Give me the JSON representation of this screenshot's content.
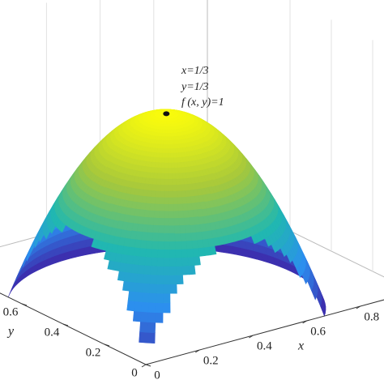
{
  "chart_data": {
    "type": "surface3d",
    "annotations": [
      "x=1/3",
      "y=1/3",
      "f (x, y)=1"
    ],
    "xlabel": "x",
    "ylabel": "y",
    "peak": {
      "x": 0.333,
      "y": 0.333,
      "z": 1
    },
    "xlim": [
      0,
      1
    ],
    "ylim": [
      0,
      1
    ],
    "zlim": [
      0,
      1
    ],
    "xticks": [
      0,
      0.2,
      0.4,
      0.6,
      0.8
    ],
    "yticks": [
      0,
      0.2,
      0.4,
      0.6
    ],
    "grid": true,
    "colormap": [
      "#3e26a8",
      "#2c8ef0",
      "#21b8b0",
      "#a6c83c",
      "#f9fb0e"
    ]
  }
}
